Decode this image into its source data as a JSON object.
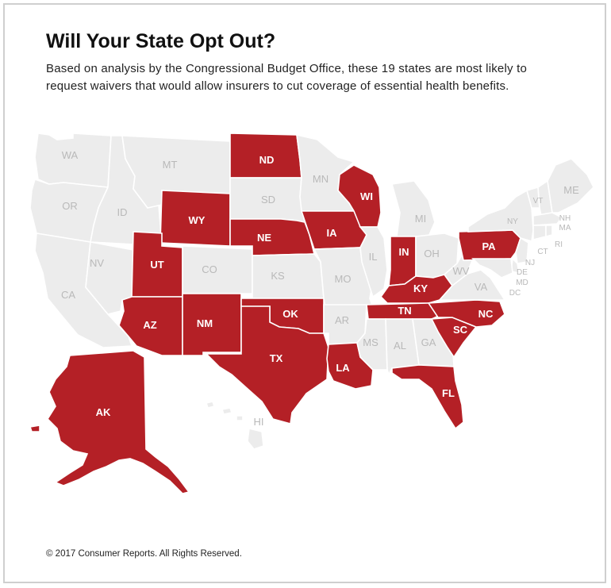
{
  "title": "Will Your State Opt Out?",
  "subtitle": "Based on analysis by the Congressional Budget Office, these 19 states are most likely to request waivers that would allow insurers to cut coverage of essential health benefits.",
  "footer": "© 2017 Consumer Reports. All Rights Reserved.",
  "colors": {
    "highlight": "#b42026",
    "other": "#ececec",
    "label_other": "#b9b9b9"
  },
  "highlighted_states": [
    "AK",
    "AZ",
    "UT",
    "NM",
    "WY",
    "ND",
    "NE",
    "TX",
    "OK",
    "LA",
    "IA",
    "WI",
    "IN",
    "KY",
    "TN",
    "FL",
    "SC",
    "NC",
    "PA"
  ],
  "labels": {
    "WA": "WA",
    "OR": "OR",
    "CA": "CA",
    "ID": "ID",
    "NV": "NV",
    "MT": "MT",
    "WY": "WY",
    "UT": "UT",
    "AZ": "AZ",
    "CO": "CO",
    "NM": "NM",
    "ND": "ND",
    "SD": "SD",
    "NE": "NE",
    "KS": "KS",
    "OK": "OK",
    "TX": "TX",
    "MN": "MN",
    "IA": "IA",
    "MO": "MO",
    "AR": "AR",
    "LA": "LA",
    "WI": "WI",
    "IL": "IL",
    "MI": "MI",
    "IN": "IN",
    "OH": "OH",
    "KY": "KY",
    "TN": "TN",
    "MS": "MS",
    "AL": "AL",
    "GA": "GA",
    "FL": "FL",
    "SC": "SC",
    "NC": "NC",
    "VA": "VA",
    "WV": "WV",
    "PA": "PA",
    "NY": "NY",
    "VT": "VT",
    "NH": "NH",
    "ME": "ME",
    "MA": "MA",
    "RI": "RI",
    "CT": "CT",
    "NJ": "NJ",
    "DE": "DE",
    "MD": "MD",
    "DC": "DC",
    "AK": "AK",
    "HI": "HI"
  }
}
